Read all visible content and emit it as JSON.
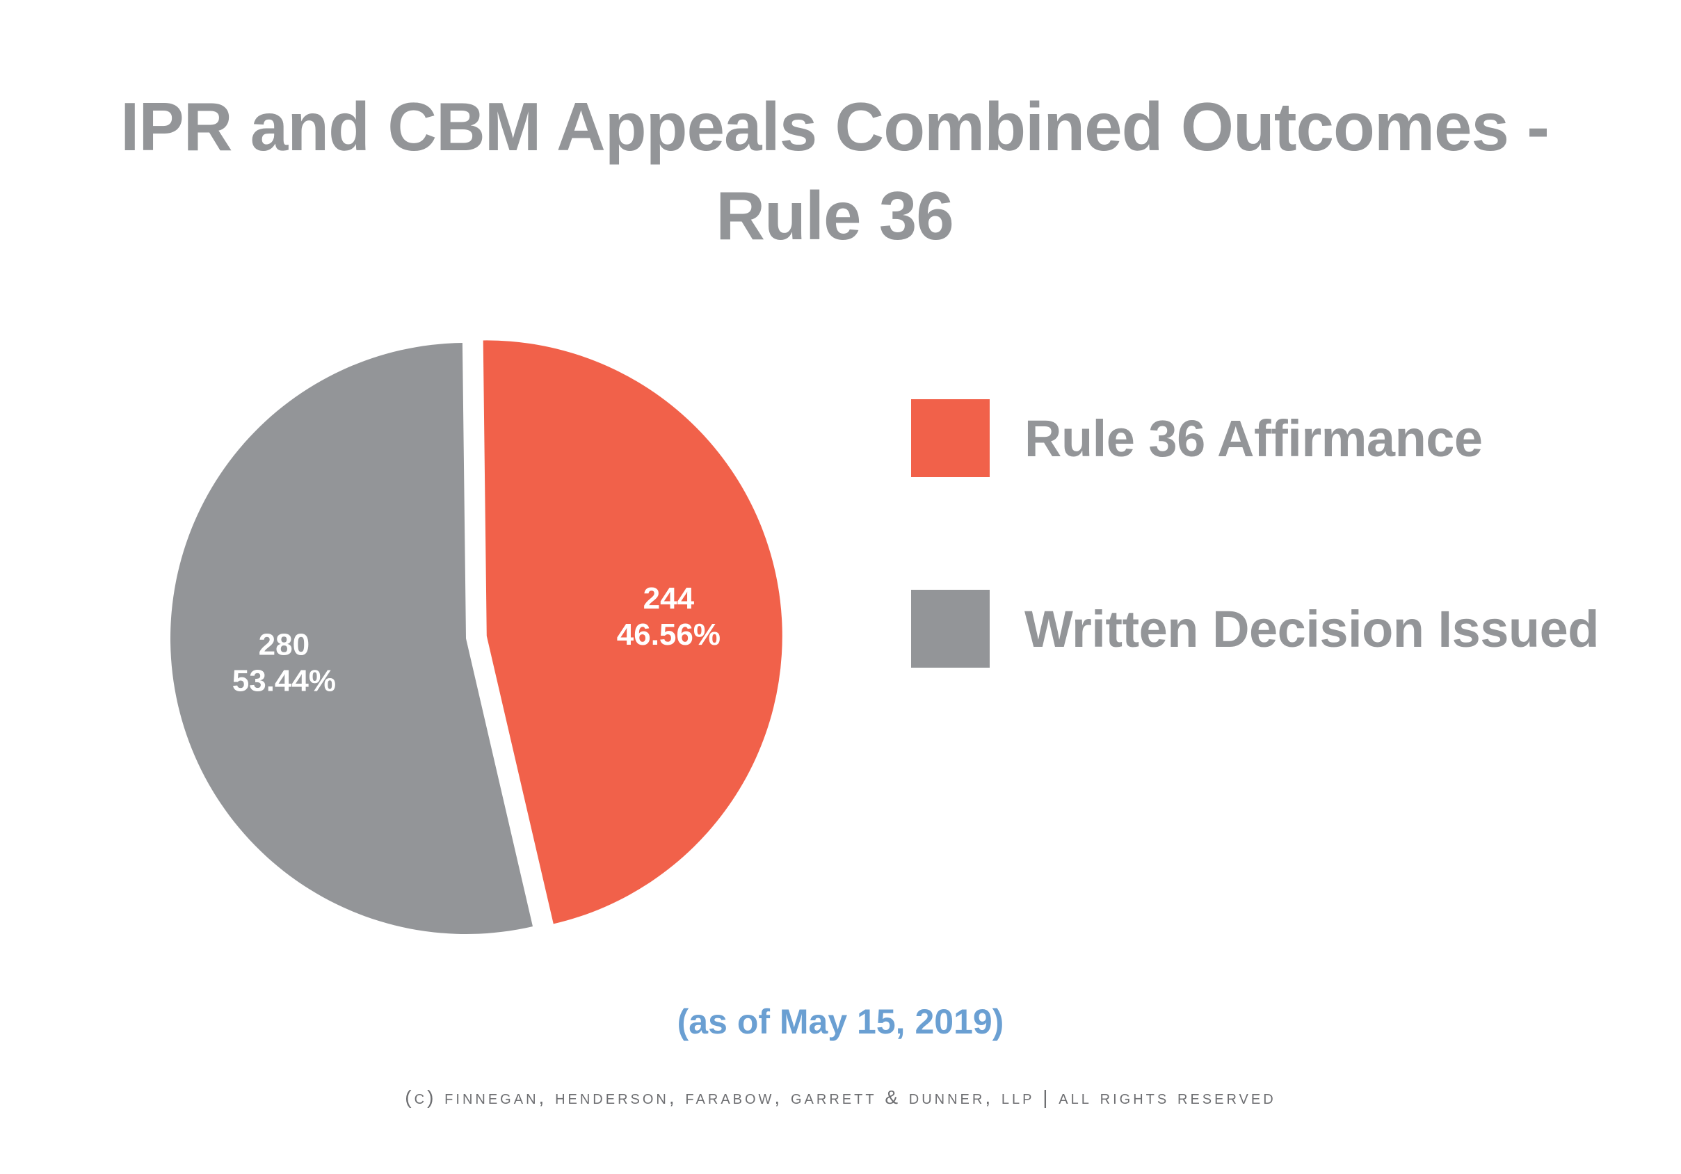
{
  "chart_data": {
    "type": "pie",
    "title": [
      "IPR and CBM Appeals Combined Outcomes -",
      "Rule 36"
    ],
    "slices": [
      {
        "name": "Rule 36 Affirmance",
        "value": 244,
        "percent": "46.56%",
        "color": "#f1614a",
        "exploded": true
      },
      {
        "name": "Written Decision Issued",
        "value": 280,
        "percent": "53.44%",
        "color": "#939598",
        "exploded": false
      }
    ],
    "legend_position": "right",
    "note": "(as of May 15, 2019)"
  },
  "footer": "(c) finnegan, henderson, farabow, garrett & dunner, llp | all rights reserved"
}
